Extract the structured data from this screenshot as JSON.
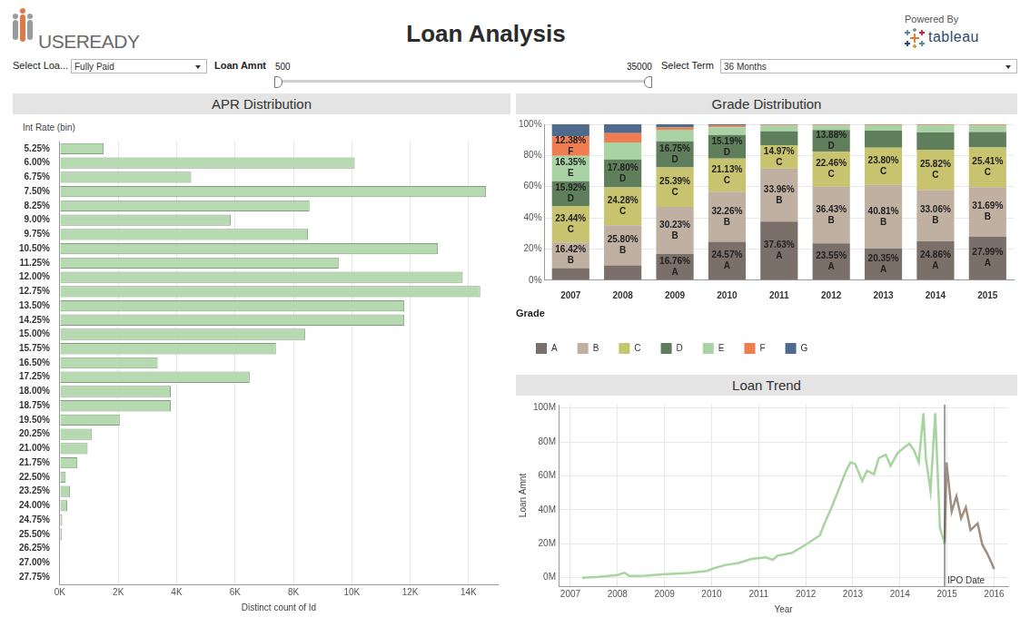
{
  "header": {
    "logo": "USEREADY",
    "title": "Loan Analysis",
    "powered_by": "Powered By",
    "brand": "tableau"
  },
  "filters": {
    "loan_status_label": "Select Loa...",
    "loan_status": "Fully Paid",
    "amount_label": "Loan Amnt",
    "amount_min": 500,
    "amount_max": 35000,
    "term_label": "Select Term",
    "term": "36 Months"
  },
  "chart_data": [
    {
      "type": "bar",
      "title": "APR Distribution",
      "orientation": "horizontal",
      "x_label": "Distinct count of Id",
      "y_label": "Int Rate (bin)",
      "categories": [
        "5.25%",
        "6.00%",
        "6.75%",
        "7.50%",
        "8.25%",
        "9.00%",
        "9.75%",
        "10.50%",
        "11.25%",
        "12.00%",
        "12.75%",
        "13.50%",
        "14.25%",
        "15.00%",
        "15.75%",
        "16.50%",
        "17.25%",
        "18.00%",
        "18.75%",
        "19.50%",
        "20.25%",
        "21.00%",
        "21.75%",
        "22.50%",
        "23.25%",
        "24.00%",
        "24.75%",
        "25.50%",
        "26.25%",
        "27.00%",
        "27.75%"
      ],
      "values": [
        1500,
        10100,
        4500,
        14600,
        8550,
        5850,
        8500,
        12950,
        9550,
        13800,
        14400,
        11800,
        11800,
        8400,
        7400,
        3350,
        6500,
        3800,
        3800,
        2050,
        1100,
        950,
        600,
        200,
        350,
        250,
        80,
        70,
        20,
        20,
        20
      ],
      "color": "#b6d9b1",
      "xlim": [
        0,
        15000
      ],
      "xticks": [
        {
          "value": 0,
          "label": "0K"
        },
        {
          "value": 2000,
          "label": "2K"
        },
        {
          "value": 4000,
          "label": "4K"
        },
        {
          "value": 6000,
          "label": "6K"
        },
        {
          "value": 8000,
          "label": "8K"
        },
        {
          "value": 10000,
          "label": "10K"
        },
        {
          "value": 12000,
          "label": "12K"
        },
        {
          "value": 14000,
          "label": "14K"
        }
      ],
      "grid": true
    },
    {
      "type": "bar",
      "title": "Grade Distribution",
      "stacked": true,
      "data_labels": true,
      "categories": [
        "2007",
        "2008",
        "2009",
        "2010",
        "2011",
        "2012",
        "2013",
        "2014",
        "2015"
      ],
      "series": [
        {
          "name": "A",
          "color": "#7a6f69",
          "values": [
            7.71,
            9.5,
            16.76,
            24.57,
            37.63,
            23.55,
            20.35,
            24.86,
            27.99
          ],
          "value_labels": [
            null,
            null,
            "16.76%",
            "24.57%",
            "37.63%",
            "23.55%",
            "20.35%",
            "24.86%",
            "27.99%"
          ]
        },
        {
          "name": "B",
          "color": "#bfb0a2",
          "values": [
            16.42,
            25.8,
            30.23,
            32.26,
            33.96,
            36.43,
            40.81,
            33.06,
            31.69
          ],
          "value_labels": [
            "16.42%",
            "25.80%",
            "30.23%",
            "32.26%",
            "33.96%",
            "36.43%",
            "40.81%",
            "33.06%",
            "31.69%"
          ]
        },
        {
          "name": "C",
          "color": "#c7c36e",
          "values": [
            23.44,
            24.28,
            25.39,
            21.13,
            14.97,
            22.46,
            23.8,
            25.82,
            25.41
          ],
          "value_labels": [
            "23.44%",
            "24.28%",
            "25.39%",
            "21.13%",
            "14.97%",
            "22.46%",
            "23.80%",
            "25.82%",
            "25.41%"
          ]
        },
        {
          "name": "D",
          "color": "#5f7e5b",
          "values": [
            15.92,
            17.8,
            16.75,
            15.19,
            9,
            13.88,
            11,
            11,
            10
          ],
          "value_labels": [
            "15.92%",
            "17.80%",
            "16.75%",
            "15.19%",
            null,
            "13.88%",
            null,
            null,
            null
          ]
        },
        {
          "name": "E",
          "color": "#a9d3a5",
          "values": [
            16.35,
            11,
            7.37,
            5,
            3.5,
            3,
            3.5,
            4.5,
            4
          ],
          "value_labels": [
            "16.35%",
            null,
            null,
            null,
            null,
            null,
            null,
            null,
            null
          ]
        },
        {
          "name": "F",
          "color": "#ef7d4f",
          "values": [
            12.38,
            6,
            1.5,
            1,
            0.7,
            0.5,
            0.4,
            0.6,
            0.7
          ],
          "value_labels": [
            "12.38%",
            null,
            null,
            null,
            null,
            null,
            null,
            null,
            null
          ]
        },
        {
          "name": "G",
          "color": "#4e6a8c",
          "values": [
            7.78,
            5.62,
            2,
            0.85,
            0.24,
            0.18,
            0.14,
            0.16,
            0.21
          ],
          "value_labels": [
            null,
            null,
            null,
            null,
            null,
            null,
            null,
            null,
            null
          ]
        }
      ],
      "ylim": [
        0,
        100
      ],
      "yticks": [
        {
          "value": 0,
          "label": "0%"
        },
        {
          "value": 20,
          "label": "20%"
        },
        {
          "value": 40,
          "label": "40%"
        },
        {
          "value": 60,
          "label": "60%"
        },
        {
          "value": 80,
          "label": "80%"
        },
        {
          "value": 100,
          "label": "100%"
        }
      ],
      "legend": "bottom",
      "legend_title": "Grade",
      "grid": true
    },
    {
      "type": "line",
      "title": "Loan Trend",
      "x_label": "Year",
      "y_label": "Loan Amnt",
      "series": [
        {
          "color": "#a8d4a0",
          "x": [
            2007.25,
            2007.6,
            2008.0,
            2008.15,
            2008.25,
            2008.6,
            2008.95,
            2009.5,
            2009.9,
            2010.1,
            2010.3,
            2010.55,
            2010.85,
            2011.15,
            2011.3,
            2011.4,
            2011.7,
            2012.0,
            2012.3,
            2012.4,
            2012.55,
            2012.7,
            2012.85,
            2012.95,
            2013.05,
            2013.2,
            2013.3,
            2013.45,
            2013.55,
            2013.7,
            2013.8,
            2013.95,
            2014.1,
            2014.2,
            2014.3,
            2014.4,
            2014.5,
            2014.55,
            2014.65,
            2014.75,
            2014.85,
            2014.95
          ],
          "values": [
            0,
            0.5,
            1.5,
            3,
            1,
            1.2,
            2,
            2.8,
            4,
            6,
            7.5,
            8.5,
            11,
            12,
            10.5,
            13,
            14.5,
            19.5,
            25,
            32,
            41.5,
            52,
            62.5,
            68,
            67,
            57,
            63,
            61,
            70.5,
            72.5,
            66,
            73.5,
            77,
            79,
            75,
            68,
            97,
            70.5,
            51,
            97,
            29.5,
            20
          ]
        },
        {
          "color": "#a08e80",
          "x": [
            2014.95,
            2014.99,
            2015.1,
            2015.2,
            2015.3,
            2015.4,
            2015.5,
            2015.65,
            2015.75,
            2015.85,
            2015.95,
            2016.0
          ],
          "values": [
            20,
            68,
            39,
            48,
            35,
            41.5,
            28,
            32,
            19.5,
            14.5,
            8.5,
            5
          ]
        }
      ],
      "xlim": [
        2006.75,
        2016.3
      ],
      "xticks": [
        2007,
        2008,
        2009,
        2010,
        2011,
        2012,
        2013,
        2014,
        2015,
        2016
      ],
      "ylim": [
        -5,
        102
      ],
      "yticks": [
        {
          "value": 0,
          "label": "0M"
        },
        {
          "value": 20,
          "label": "20M"
        },
        {
          "value": 40,
          "label": "40M"
        },
        {
          "value": 60,
          "label": "60M"
        },
        {
          "value": 80,
          "label": "80M"
        },
        {
          "value": 100,
          "label": "100M"
        }
      ],
      "annotations": [
        {
          "x": 2014.95,
          "text": "IPO Date"
        }
      ],
      "grid": true
    }
  ]
}
